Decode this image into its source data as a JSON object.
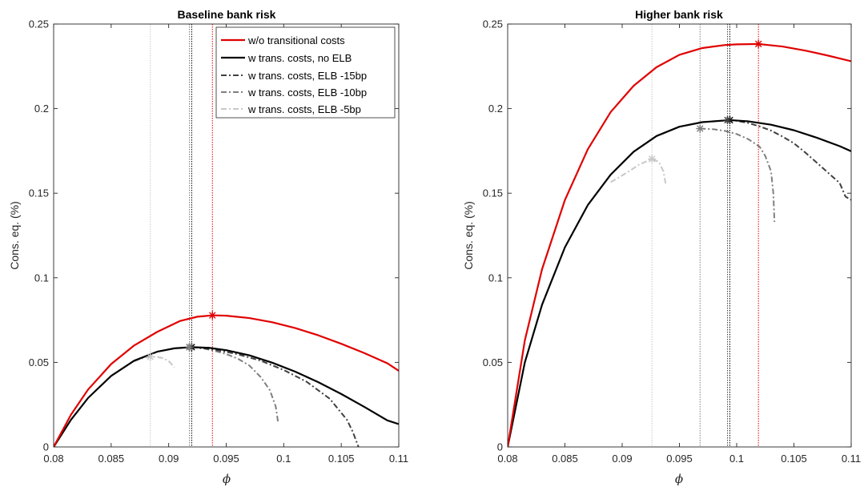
{
  "chart_data": [
    {
      "type": "line",
      "title": "Baseline bank risk",
      "xlabel": "ϕ",
      "ylabel": "Cons. eq. (%)",
      "xlim": [
        0.08,
        0.11
      ],
      "ylim": [
        0,
        0.25
      ],
      "xticks": [
        "0.08",
        "0.085",
        "0.09",
        "0.095",
        "0.1",
        "0.105",
        "0.11"
      ],
      "yticks": [
        "0",
        "0.05",
        "0.1",
        "0.15",
        "0.2",
        "0.25"
      ],
      "grid": false,
      "legend_position": "top-right",
      "series": [
        {
          "name": "w/o transitional costs",
          "color": "#e00000",
          "style": "solid",
          "x": [
            0.08,
            0.0815,
            0.083,
            0.085,
            0.087,
            0.089,
            0.091,
            0.0925,
            0.0938,
            0.095,
            0.097,
            0.099,
            0.101,
            0.103,
            0.105,
            0.107,
            0.109,
            0.11
          ],
          "y": [
            0,
            0.019,
            0.034,
            0.049,
            0.06,
            0.068,
            0.0745,
            0.077,
            0.0778,
            0.0776,
            0.0762,
            0.0737,
            0.0703,
            0.066,
            0.061,
            0.0555,
            0.0495,
            0.045
          ],
          "optimum": [
            0.0938,
            0.0778
          ]
        },
        {
          "name": "w trans. costs, no ELB",
          "color": "#000000",
          "style": "solid",
          "x": [
            0.08,
            0.0815,
            0.083,
            0.085,
            0.087,
            0.089,
            0.0905,
            0.092,
            0.0935,
            0.095,
            0.097,
            0.099,
            0.101,
            0.103,
            0.105,
            0.107,
            0.109,
            0.11
          ],
          "y": [
            0,
            0.016,
            0.029,
            0.042,
            0.051,
            0.0563,
            0.0583,
            0.059,
            0.0586,
            0.0572,
            0.0542,
            0.0498,
            0.0445,
            0.0383,
            0.0313,
            0.0237,
            0.0157,
            0.0135
          ],
          "optimum": [
            0.092,
            0.059
          ]
        },
        {
          "name": "w trans. costs, ELB -15bp",
          "color": "#404040",
          "style": "dashdot",
          "x": [
            0.092,
            0.094,
            0.096,
            0.098,
            0.1,
            0.102,
            0.104,
            0.1055,
            0.106,
            0.1065
          ],
          "y": [
            0.059,
            0.0575,
            0.0548,
            0.051,
            0.0455,
            0.0385,
            0.0285,
            0.016,
            0.009,
            0
          ],
          "optimum": [
            0.0918,
            0.059
          ]
        },
        {
          "name": "w trans. costs, ELB -10bp",
          "color": "#7f7f7f",
          "style": "dashdot",
          "x": [
            0.092,
            0.093,
            0.094,
            0.095,
            0.096,
            0.097,
            0.098,
            0.0988,
            0.0993,
            0.0995
          ],
          "y": [
            0.059,
            0.0583,
            0.0568,
            0.0549,
            0.0522,
            0.0482,
            0.0413,
            0.0335,
            0.024,
            0.015
          ],
          "optimum": [
            0.0918,
            0.059
          ]
        },
        {
          "name": "w trans. costs, ELB -5bp",
          "color": "#c8c8c8",
          "style": "dashdot",
          "x": [
            0.087,
            0.0875,
            0.088,
            0.0884,
            0.089,
            0.0895,
            0.09,
            0.0905
          ],
          "y": [
            0.0505,
            0.0518,
            0.0528,
            0.0533,
            0.0532,
            0.0525,
            0.0508,
            0.047
          ],
          "optimum": [
            0.0884,
            0.0533
          ]
        }
      ]
    },
    {
      "type": "line",
      "title": "Higher bank risk",
      "xlabel": "ϕ",
      "ylabel": "Cons. eq. (%)",
      "xlim": [
        0.08,
        0.11
      ],
      "ylim": [
        0,
        0.25
      ],
      "xticks": [
        "0.08",
        "0.085",
        "0.09",
        "0.095",
        "0.1",
        "0.105",
        "0.11"
      ],
      "yticks": [
        "0",
        "0.05",
        "0.1",
        "0.15",
        "0.2",
        "0.25"
      ],
      "grid": false,
      "legend_position": "none",
      "series": [
        {
          "name": "w/o transitional costs",
          "color": "#e00000",
          "style": "solid",
          "x": [
            0.08,
            0.0815,
            0.083,
            0.085,
            0.087,
            0.089,
            0.091,
            0.093,
            0.095,
            0.097,
            0.099,
            0.1,
            0.1019,
            0.104,
            0.106,
            0.108,
            0.11
          ],
          "y": [
            0,
            0.063,
            0.105,
            0.146,
            0.176,
            0.198,
            0.2135,
            0.2245,
            0.2318,
            0.2358,
            0.2376,
            0.238,
            0.2382,
            0.2367,
            0.2343,
            0.2313,
            0.228
          ],
          "optimum": [
            0.1019,
            0.2382
          ]
        },
        {
          "name": "w trans. costs, no ELB",
          "color": "#000000",
          "style": "solid",
          "x": [
            0.08,
            0.0815,
            0.083,
            0.085,
            0.087,
            0.089,
            0.091,
            0.093,
            0.095,
            0.097,
            0.0994,
            0.101,
            0.103,
            0.105,
            0.107,
            0.109,
            0.11
          ],
          "y": [
            0,
            0.05,
            0.084,
            0.118,
            0.143,
            0.161,
            0.1745,
            0.1838,
            0.1893,
            0.192,
            0.1932,
            0.1925,
            0.1905,
            0.1872,
            0.1828,
            0.1778,
            0.1748
          ],
          "optimum": [
            0.0994,
            0.1932
          ]
        },
        {
          "name": "w trans. costs, ELB -15bp",
          "color": "#404040",
          "style": "dashdot",
          "x": [
            0.0992,
            0.1,
            0.101,
            0.102,
            0.103,
            0.104,
            0.105,
            0.106,
            0.107,
            0.108,
            0.109,
            0.1095,
            0.11
          ],
          "y": [
            0.1932,
            0.1928,
            0.1915,
            0.1895,
            0.187,
            0.1835,
            0.1795,
            0.174,
            0.168,
            0.162,
            0.156,
            0.148,
            0.146
          ],
          "optimum": [
            0.0992,
            0.1932
          ]
        },
        {
          "name": "w trans. costs, ELB -10bp",
          "color": "#7f7f7f",
          "style": "dashdot",
          "x": [
            0.0968,
            0.098,
            0.099,
            0.1,
            0.101,
            0.102,
            0.1025,
            0.103,
            0.1032,
            0.1033
          ],
          "y": [
            0.1882,
            0.1878,
            0.1868,
            0.185,
            0.182,
            0.1775,
            0.172,
            0.163,
            0.15,
            0.133
          ],
          "optimum": [
            0.0968,
            0.1882
          ]
        },
        {
          "name": "w trans. costs, ELB -5bp",
          "color": "#c8c8c8",
          "style": "dashdot",
          "x": [
            0.089,
            0.0905,
            0.0915,
            0.0926,
            0.0932,
            0.0936,
            0.0938
          ],
          "y": [
            0.1565,
            0.1625,
            0.167,
            0.1702,
            0.1685,
            0.163,
            0.1555
          ],
          "optimum": [
            0.0926,
            0.1702
          ]
        }
      ]
    }
  ]
}
